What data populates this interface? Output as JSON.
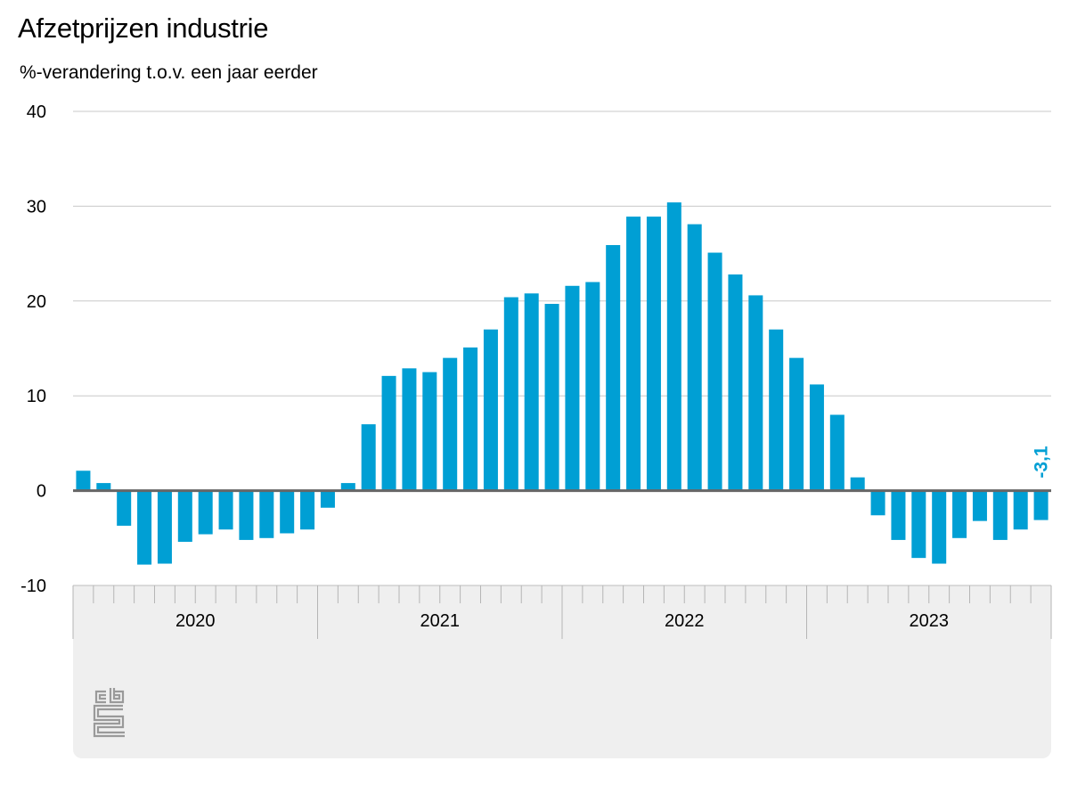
{
  "title": "Afzetprijzen industrie",
  "subtitle": "%-verandering t.o.v. een jaar eerder",
  "logo_text": "cbs",
  "chart_data": {
    "type": "bar",
    "title": "Afzetprijzen industrie",
    "subtitle": "%-verandering t.o.v. een jaar eerder",
    "ylabel": "%-verandering t.o.v. een jaar eerder",
    "ylim": [
      -10,
      40
    ],
    "yticks": [
      40,
      30,
      20,
      10,
      0,
      -10
    ],
    "year_labels": [
      "2020",
      "2021",
      "2022",
      "2023"
    ],
    "grid": true,
    "bar_color": "#009fd4",
    "zero_line_color": "#666666",
    "annotation": {
      "text": "-3,1",
      "color": "#009fd4",
      "target": "last"
    },
    "categories": [
      "2020-01",
      "2020-02",
      "2020-03",
      "2020-04",
      "2020-05",
      "2020-06",
      "2020-07",
      "2020-08",
      "2020-09",
      "2020-10",
      "2020-11",
      "2020-12",
      "2021-01",
      "2021-02",
      "2021-03",
      "2021-04",
      "2021-05",
      "2021-06",
      "2021-07",
      "2021-08",
      "2021-09",
      "2021-10",
      "2021-11",
      "2021-12",
      "2022-01",
      "2022-02",
      "2022-03",
      "2022-04",
      "2022-05",
      "2022-06",
      "2022-07",
      "2022-08",
      "2022-09",
      "2022-10",
      "2022-11",
      "2022-12",
      "2023-01",
      "2023-02",
      "2023-03",
      "2023-04",
      "2023-05",
      "2023-06",
      "2023-07",
      "2023-08",
      "2023-09",
      "2023-10",
      "2023-11",
      "2023-12"
    ],
    "values": [
      2.1,
      0.8,
      -3.7,
      -7.8,
      -7.7,
      -5.4,
      -4.6,
      -4.1,
      -5.2,
      -5.0,
      -4.5,
      -4.1,
      -1.8,
      0.8,
      7.0,
      12.1,
      12.9,
      12.5,
      14.0,
      15.1,
      17.0,
      20.4,
      20.8,
      19.7,
      21.6,
      22.0,
      25.9,
      28.9,
      28.9,
      30.4,
      28.1,
      25.1,
      22.8,
      20.6,
      17.0,
      14.0,
      11.2,
      8.0,
      1.4,
      -2.6,
      -5.2,
      -7.1,
      -7.7,
      -5.0,
      -3.2,
      -5.2,
      -4.1,
      -3.1
    ]
  }
}
